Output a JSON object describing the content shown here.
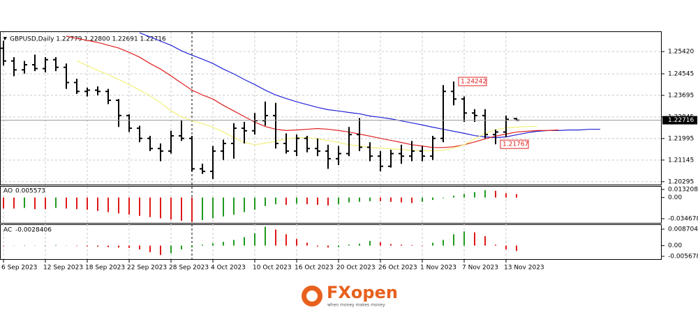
{
  "chart_data": [
    {
      "type": "ohlc",
      "title": "GBPUSD,Daily  1.22779 1.22800 1.22691 1.22716",
      "categories": [
        "6 Sep 2023",
        null,
        null,
        null,
        "12 Sep 2023",
        null,
        null,
        null,
        "18 Sep 2023",
        null,
        null,
        null,
        "22 Sep 2023",
        null,
        null,
        null,
        "28 Sep 2023",
        null,
        null,
        null,
        "4 Oct 2023",
        null,
        null,
        null,
        "10 Oct 2023",
        null,
        null,
        null,
        "16 Oct 2023",
        null,
        null,
        null,
        "20 Oct 2023",
        null,
        null,
        null,
        "26 Oct 2023",
        null,
        null,
        null,
        "1 Nov 2023",
        null,
        null,
        null,
        "7 Nov 2023",
        null,
        null,
        null,
        "13 Nov 2023",
        null,
        null,
        null,
        null,
        null,
        null,
        null,
        null,
        null
      ],
      "open": [
        1.2555,
        1.2505,
        1.247,
        1.249,
        1.2475,
        1.251,
        1.248,
        1.242,
        1.2385,
        1.239,
        1.2385,
        1.235,
        1.229,
        1.224,
        1.22,
        1.216,
        1.215,
        1.221,
        1.22,
        1.208,
        1.207,
        1.215,
        1.218,
        1.224,
        1.223,
        1.227,
        1.229,
        1.218,
        1.215,
        1.22,
        1.216,
        1.215,
        1.212,
        1.214,
        1.2215,
        1.2165,
        1.213,
        1.209,
        1.214,
        1.213,
        1.215,
        1.213,
        1.22,
        1.2385,
        1.2355,
        1.23,
        1.229,
        1.2215,
        1.2225,
        1.22779,
        null,
        null,
        null,
        null,
        null,
        null,
        null,
        null
      ],
      "high": [
        1.2585,
        1.252,
        1.2505,
        1.253,
        1.252,
        1.252,
        1.2495,
        1.2435,
        1.24,
        1.2405,
        1.2395,
        1.2355,
        1.2295,
        1.225,
        1.221,
        1.218,
        1.223,
        1.227,
        1.221,
        1.21,
        1.217,
        1.2195,
        1.226,
        1.2265,
        1.23,
        1.2345,
        1.234,
        1.222,
        1.2215,
        1.221,
        1.22,
        1.2175,
        1.217,
        1.2245,
        1.228,
        1.2185,
        1.215,
        1.2155,
        1.2175,
        1.219,
        1.217,
        1.221,
        1.241,
        1.24242,
        1.2365,
        1.2315,
        1.2315,
        1.2235,
        1.229,
        1.228,
        null,
        null,
        null,
        null,
        null,
        null,
        null,
        null
      ],
      "low": [
        1.2487,
        1.2445,
        1.2455,
        1.2465,
        1.246,
        1.2465,
        1.2395,
        1.2375,
        1.2365,
        1.237,
        1.2335,
        1.2245,
        1.2225,
        1.2185,
        1.215,
        1.211,
        1.214,
        1.219,
        1.207,
        1.206,
        1.204,
        1.2115,
        1.212,
        1.218,
        1.2215,
        1.225,
        1.216,
        1.214,
        1.213,
        1.2145,
        1.213,
        1.208,
        1.2095,
        1.213,
        1.215,
        1.211,
        1.207,
        1.2085,
        1.21,
        1.211,
        1.211,
        1.2115,
        1.2185,
        1.233,
        1.2265,
        1.2265,
        1.22,
        1.21767,
        1.2205,
        1.22691,
        null,
        null,
        null,
        null,
        null,
        null,
        null,
        null
      ],
      "close": [
        1.2505,
        1.247,
        1.249,
        1.2475,
        1.251,
        1.248,
        1.242,
        1.2385,
        1.239,
        1.2385,
        1.235,
        1.229,
        1.224,
        1.22,
        1.216,
        1.215,
        1.221,
        1.22,
        1.208,
        1.207,
        1.215,
        1.218,
        1.224,
        1.223,
        1.227,
        1.229,
        1.218,
        1.215,
        1.22,
        1.216,
        1.215,
        1.212,
        1.214,
        1.2215,
        1.2165,
        1.213,
        1.209,
        1.214,
        1.213,
        1.215,
        1.213,
        1.22,
        1.2385,
        1.2355,
        1.23,
        1.229,
        1.2215,
        1.2225,
        1.2275,
        1.22716,
        null,
        null,
        null,
        null,
        null,
        null,
        null,
        null
      ],
      "color": "#000000",
      "lines": [
        {
          "color": "#2323d8",
          "values": [
            null,
            null,
            null,
            null,
            null,
            null,
            null,
            null,
            null,
            null,
            null,
            null,
            null,
            1.2616,
            1.26,
            1.2583,
            1.2567,
            1.2545,
            1.2528,
            1.2512,
            1.2495,
            1.2473,
            1.2454,
            1.2432,
            1.2412,
            1.239,
            1.2371,
            1.2357,
            1.2344,
            1.2333,
            1.2322,
            1.2313,
            1.2308,
            1.2302,
            1.2297,
            1.2288,
            1.2283,
            1.2277,
            1.2269,
            1.2261,
            1.2253,
            1.2244,
            1.2236,
            1.2228,
            1.222,
            1.2211,
            1.2206,
            1.2203,
            1.2206,
            1.2214,
            1.2222,
            1.2228,
            1.2231,
            1.2231,
            1.2233,
            1.2233,
            1.2236,
            1.2236
          ]
        },
        {
          "color": "#e02020",
          "values": [
            null,
            null,
            null,
            null,
            null,
            null,
            1.2603,
            1.2594,
            1.2586,
            1.2578,
            1.2567,
            1.2556,
            1.2539,
            1.252,
            1.2495,
            1.2473,
            1.2446,
            1.2418,
            1.239,
            1.2371,
            1.2355,
            1.233,
            1.2308,
            1.2286,
            1.2264,
            1.2247,
            1.2236,
            1.2231,
            1.2233,
            1.2236,
            1.2239,
            1.2236,
            1.2231,
            1.2225,
            1.2217,
            1.2209,
            1.22,
            1.2192,
            1.2184,
            1.2175,
            1.217,
            1.2164,
            1.2164,
            1.2167,
            1.2175,
            1.2186,
            1.2198,
            1.2209,
            1.2217,
            1.2225,
            1.2228,
            1.2231,
            1.2231,
            1.2233,
            null,
            null,
            null,
            null
          ]
        },
        {
          "color": "#f2f07a",
          "values": [
            null,
            null,
            null,
            null,
            null,
            null,
            null,
            1.2506,
            1.2487,
            1.2468,
            1.2451,
            1.2432,
            1.2412,
            1.239,
            1.2368,
            1.2341,
            1.2308,
            1.2286,
            1.2269,
            1.2258,
            1.2244,
            1.2225,
            1.2203,
            1.2184,
            1.2175,
            1.2181,
            1.2189,
            1.2198,
            1.2203,
            1.2203,
            1.2198,
            1.2192,
            1.2184,
            1.2175,
            1.217,
            1.2164,
            1.2162,
            1.2159,
            1.2156,
            1.2153,
            1.2151,
            1.2151,
            1.2153,
            1.2162,
            1.2175,
            1.2198,
            1.222,
            1.2233,
            1.2242,
            1.2244,
            1.2247,
            1.2247,
            null,
            null,
            null,
            null,
            null,
            null
          ]
        }
      ],
      "ylim": [
        1.2018,
        1.2619
      ],
      "yticks": [
        {
          "value": 1.2542,
          "label": "1.25420"
        },
        1.24545,
        1.23695,
        1.22845,
        1.21995,
        1.21145,
        1.20295
      ],
      "current_price": 1.22716,
      "annotations": [
        {
          "x": 43,
          "value": 1.24242
        },
        {
          "x": 47,
          "value": 1.21767
        }
      ],
      "grid": true
    },
    {
      "type": "histogram",
      "label": "AO",
      "values": [
        -0.018,
        -0.018,
        -0.017,
        -0.019,
        -0.019,
        -0.017,
        -0.018,
        -0.019,
        -0.02,
        -0.022,
        -0.024,
        -0.026,
        -0.028,
        -0.03,
        -0.032,
        -0.034,
        -0.036,
        -0.038,
        -0.04,
        -0.037,
        -0.034,
        -0.031,
        -0.028,
        -0.024,
        -0.02,
        -0.014,
        -0.011,
        -0.012,
        -0.01,
        -0.011,
        -0.012,
        -0.013,
        -0.011,
        -0.008,
        -0.007,
        -0.006,
        -0.006,
        -0.007,
        -0.008,
        -0.009,
        -0.007,
        -0.004,
        -0.001,
        0.003,
        0.006,
        0.009,
        0.012,
        0.011,
        0.007,
        0.005573
      ],
      "up_color": "#1e9a1e",
      "down_color": "#e01818",
      "ylim": [
        -0.0415,
        0.0178
      ],
      "yticks": [
        0.013208,
        {
          "value": 0,
          "label": "0.00"
        },
        -0.034678
      ]
    },
    {
      "type": "histogram",
      "label": "AC",
      "values": [
        -0.0002,
        0.0001,
        0.0002,
        0.0001,
        0.0002,
        0.0003,
        0.0001,
        -0.0002,
        -0.0004,
        -0.0006,
        -0.0008,
        -0.001,
        -0.0012,
        -0.002,
        -0.0035,
        -0.005,
        -0.004,
        -0.002,
        -0.001,
        0.0005,
        0.0012,
        0.002,
        0.003,
        0.0045,
        0.0065,
        0.01,
        0.0085,
        0.006,
        0.0035,
        0.0015,
        -0.0005,
        -0.001,
        -0.0008,
        0.0005,
        0.001,
        0.0025,
        0.0018,
        0.0008,
        0.0005,
        0.0003,
        0.0002,
        0.0015,
        0.003,
        0.006,
        0.0075,
        0.007,
        0.005,
        0.0005,
        -0.002,
        -0.0028406
      ],
      "up_color": "#1e9a1e",
      "down_color": "#e01818",
      "ylim": [
        -0.00715,
        0.01092
      ],
      "yticks": [
        0.008704,
        {
          "value": 0,
          "label": "0.00"
        },
        -0.005678
      ]
    }
  ],
  "footer": {
    "brand": "FXopen",
    "tagline": "when money makes money"
  }
}
